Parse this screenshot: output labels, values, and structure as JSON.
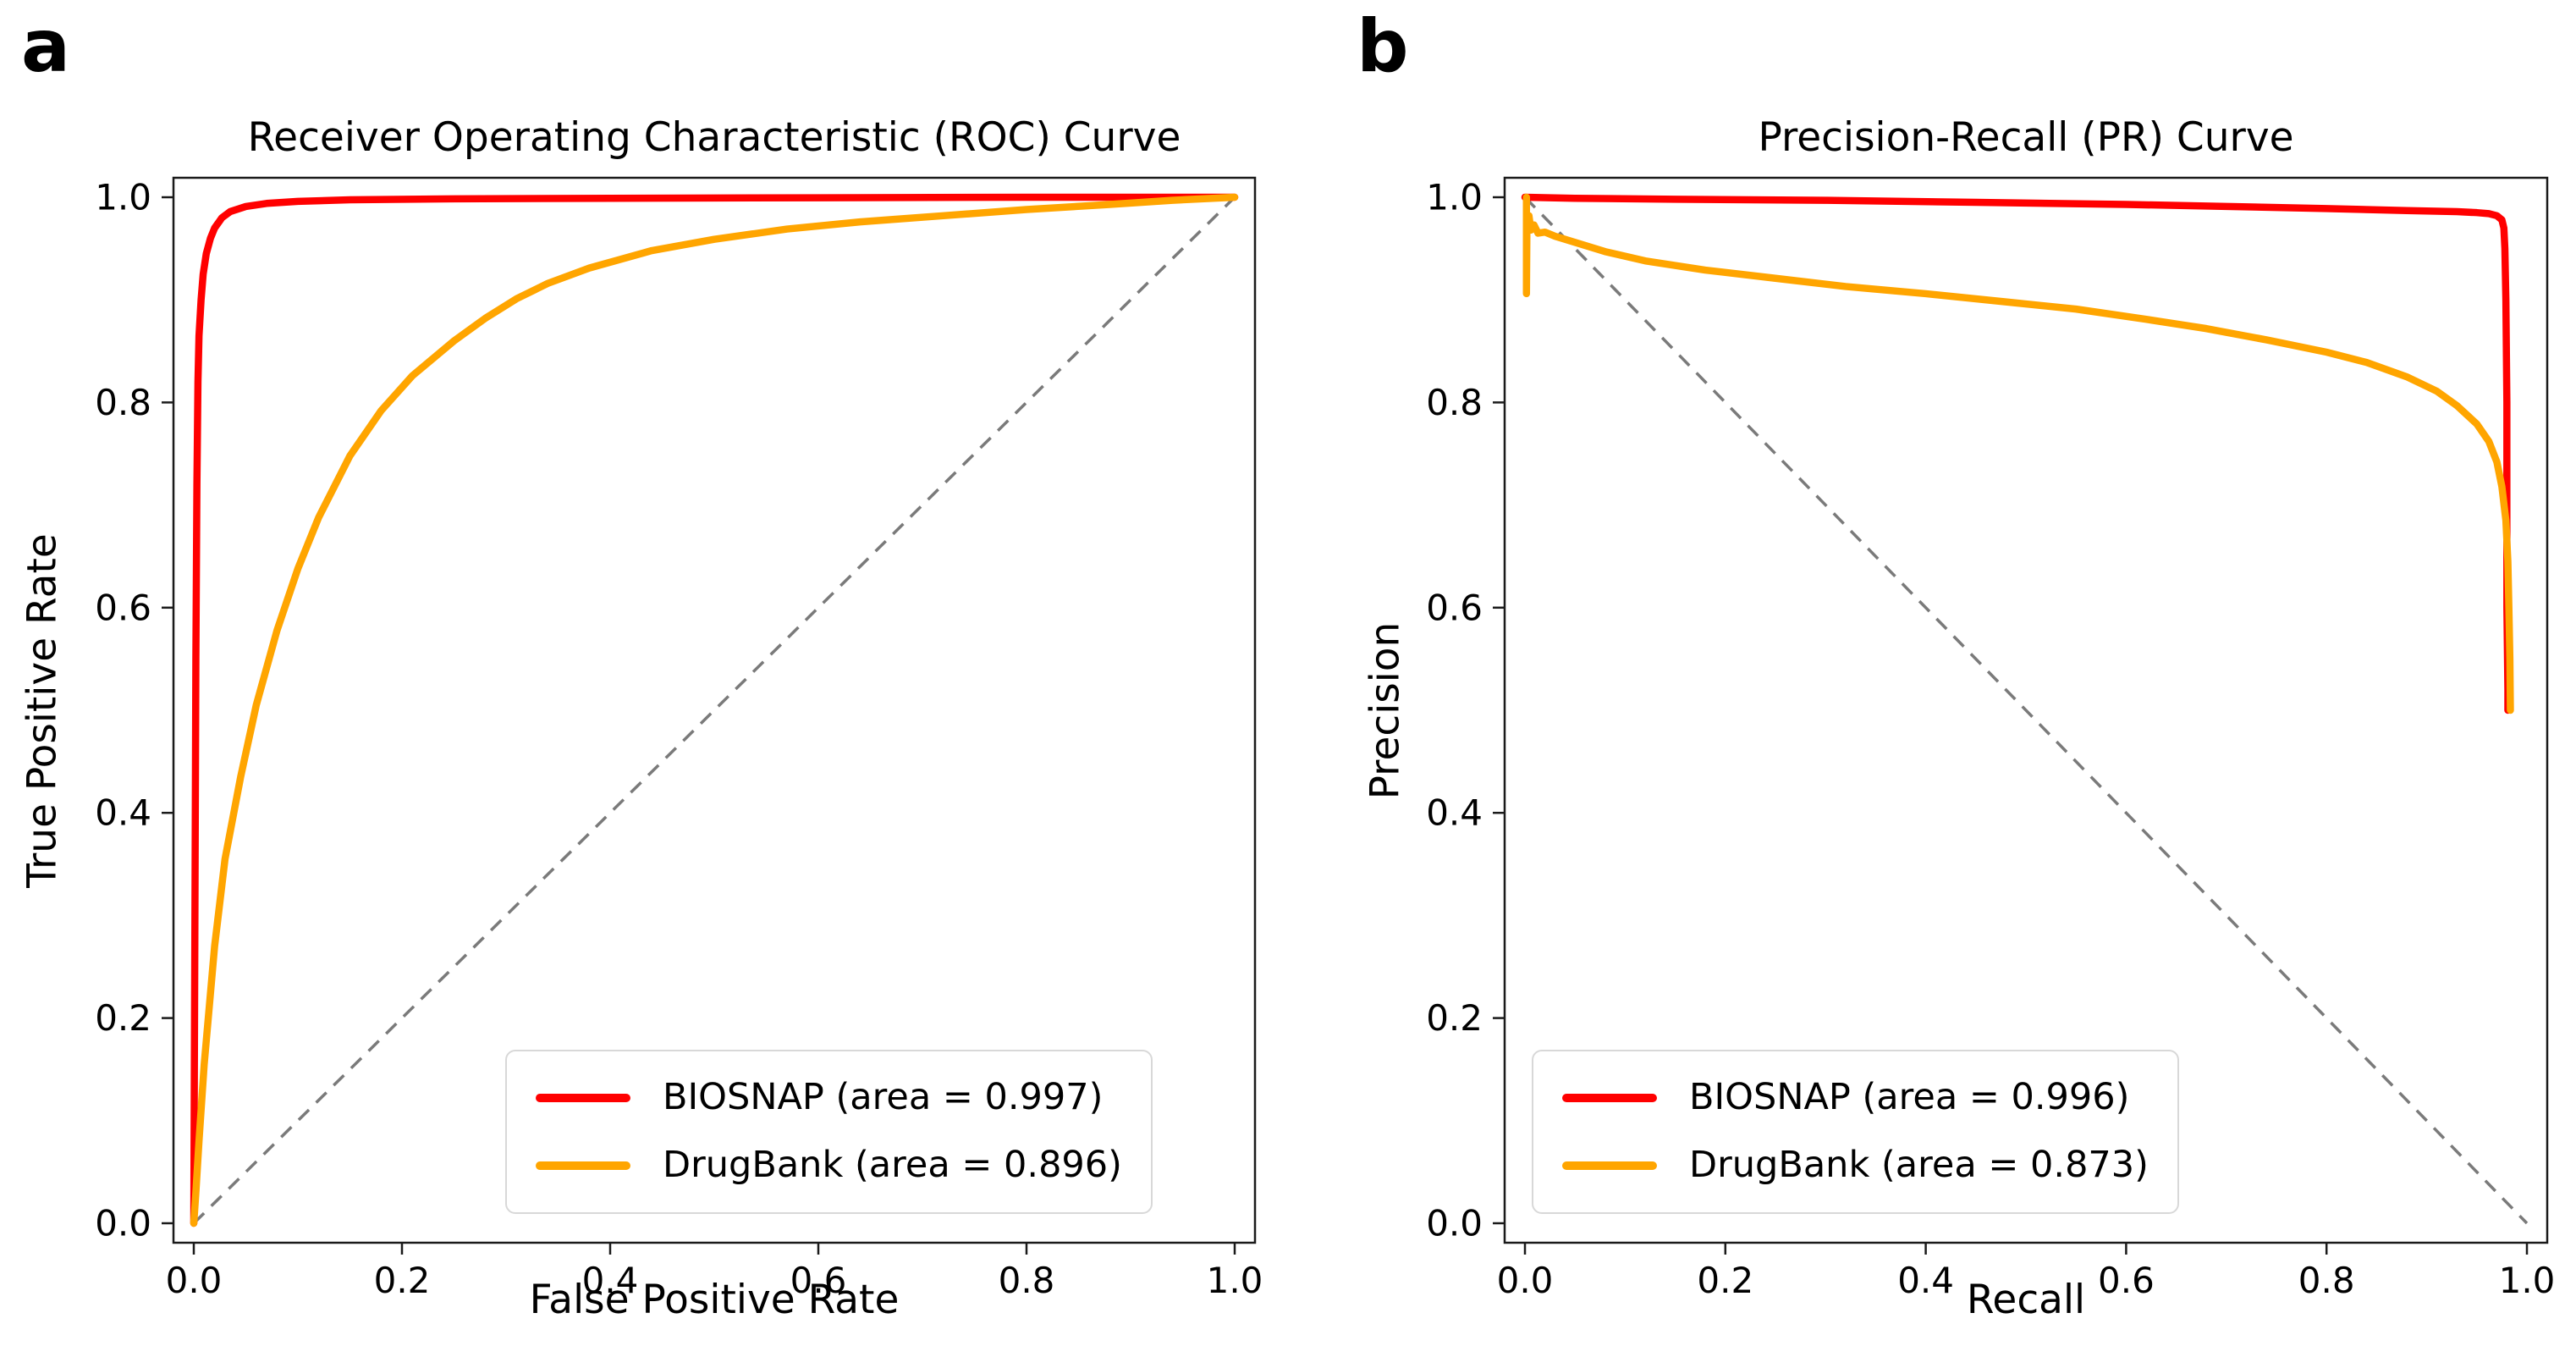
{
  "figure": {
    "background": "#ffffff",
    "panels": [
      "a",
      "b"
    ]
  },
  "colors": {
    "biosnap": "#ff0000",
    "drugbank": "#ffa500",
    "diagonal": "#7a7a7a",
    "spine": "#1a1a1a",
    "legend_border": "#d8d8d8"
  },
  "chart_data": [
    {
      "panel_letter": "a",
      "type": "line",
      "title": "Receiver Operating Characteristic (ROC) Curve",
      "xlabel": "False Positive Rate",
      "ylabel": "True Positive Rate",
      "xlim": [
        0.0,
        1.0
      ],
      "ylim": [
        0.0,
        1.0
      ],
      "xticks": [
        0.0,
        0.2,
        0.4,
        0.6,
        0.8,
        1.0
      ],
      "yticks": [
        0.0,
        0.2,
        0.4,
        0.6,
        0.8,
        1.0
      ],
      "grid": false,
      "legend_position": "lower right",
      "reference_line": {
        "name": "chance-diagonal",
        "from": [
          0,
          0
        ],
        "to": [
          1,
          1
        ],
        "color": "#7a7a7a",
        "style": "dashed"
      },
      "series": [
        {
          "name": "BIOSNAP",
          "legend_label": "BIOSNAP (area = 0.997)",
          "area": 0.997,
          "color": "#ff0000",
          "points": [
            [
              0,
              0
            ],
            [
              0.002,
              0.55
            ],
            [
              0.003,
              0.72
            ],
            [
              0.004,
              0.82
            ],
            [
              0.005,
              0.865
            ],
            [
              0.007,
              0.9
            ],
            [
              0.009,
              0.925
            ],
            [
              0.012,
              0.945
            ],
            [
              0.016,
              0.96
            ],
            [
              0.02,
              0.97
            ],
            [
              0.027,
              0.98
            ],
            [
              0.035,
              0.986
            ],
            [
              0.05,
              0.991
            ],
            [
              0.07,
              0.994
            ],
            [
              0.1,
              0.996
            ],
            [
              0.15,
              0.9975
            ],
            [
              0.25,
              0.9985
            ],
            [
              0.4,
              0.999
            ],
            [
              0.6,
              0.9995
            ],
            [
              0.8,
              1.0
            ],
            [
              1,
              1
            ]
          ]
        },
        {
          "name": "DrugBank",
          "legend_label": "DrugBank (area = 0.896)",
          "area": 0.896,
          "color": "#ffa500",
          "points": [
            [
              0,
              0
            ],
            [
              0.002,
              0.03
            ],
            [
              0.005,
              0.08
            ],
            [
              0.01,
              0.155
            ],
            [
              0.02,
              0.27
            ],
            [
              0.03,
              0.355
            ],
            [
              0.045,
              0.435
            ],
            [
              0.06,
              0.505
            ],
            [
              0.08,
              0.578
            ],
            [
              0.1,
              0.638
            ],
            [
              0.12,
              0.688
            ],
            [
              0.15,
              0.748
            ],
            [
              0.18,
              0.792
            ],
            [
              0.21,
              0.826
            ],
            [
              0.25,
              0.86
            ],
            [
              0.28,
              0.882
            ],
            [
              0.31,
              0.901
            ],
            [
              0.34,
              0.916
            ],
            [
              0.38,
              0.931
            ],
            [
              0.44,
              0.948
            ],
            [
              0.5,
              0.959
            ],
            [
              0.57,
              0.969
            ],
            [
              0.64,
              0.976
            ],
            [
              0.72,
              0.982
            ],
            [
              0.8,
              0.988
            ],
            [
              0.88,
              0.993
            ],
            [
              0.94,
              0.997
            ],
            [
              1,
              1
            ]
          ]
        }
      ]
    },
    {
      "panel_letter": "b",
      "type": "line",
      "title": "Precision-Recall (PR) Curve",
      "xlabel": "Recall",
      "ylabel": "Precision",
      "xlim": [
        0.0,
        1.0
      ],
      "ylim": [
        0.0,
        1.0
      ],
      "xticks": [
        0.0,
        0.2,
        0.4,
        0.6,
        0.8,
        1.0
      ],
      "yticks": [
        0.0,
        0.2,
        0.4,
        0.6,
        0.8,
        1.0
      ],
      "grid": false,
      "legend_position": "lower left",
      "reference_line": {
        "name": "baseline-diagonal",
        "from": [
          0,
          1
        ],
        "to": [
          1,
          0
        ],
        "color": "#7a7a7a",
        "style": "dashed"
      },
      "series": [
        {
          "name": "BIOSNAP",
          "legend_label": "BIOSNAP (area = 0.996)",
          "area": 0.996,
          "color": "#ff0000",
          "points": [
            [
              0,
              1.0
            ],
            [
              0.05,
              0.999
            ],
            [
              0.15,
              0.998
            ],
            [
              0.3,
              0.997
            ],
            [
              0.45,
              0.995
            ],
            [
              0.6,
              0.993
            ],
            [
              0.7,
              0.991
            ],
            [
              0.8,
              0.989
            ],
            [
              0.88,
              0.987
            ],
            [
              0.93,
              0.986
            ],
            [
              0.95,
              0.985
            ],
            [
              0.962,
              0.984
            ],
            [
              0.97,
              0.982
            ],
            [
              0.975,
              0.978
            ],
            [
              0.977,
              0.97
            ],
            [
              0.978,
              0.95
            ],
            [
              0.979,
              0.9
            ],
            [
              0.98,
              0.8
            ],
            [
              0.98,
              0.7
            ],
            [
              0.98,
              0.6
            ],
            [
              0.981,
              0.52
            ],
            [
              0.981,
              0.5
            ]
          ]
        },
        {
          "name": "DrugBank",
          "legend_label": "DrugBank (area = 0.873)",
          "area": 0.873,
          "color": "#ffa500",
          "points": [
            [
              0.0015,
              1.0
            ],
            [
              0.0015,
              0.906
            ],
            [
              0.002,
              0.975
            ],
            [
              0.004,
              0.982
            ],
            [
              0.006,
              0.968
            ],
            [
              0.009,
              0.973
            ],
            [
              0.013,
              0.965
            ],
            [
              0.02,
              0.966
            ],
            [
              0.03,
              0.962
            ],
            [
              0.05,
              0.956
            ],
            [
              0.08,
              0.947
            ],
            [
              0.12,
              0.938
            ],
            [
              0.18,
              0.929
            ],
            [
              0.25,
              0.921
            ],
            [
              0.32,
              0.913
            ],
            [
              0.4,
              0.906
            ],
            [
              0.48,
              0.898
            ],
            [
              0.55,
              0.891
            ],
            [
              0.62,
              0.881
            ],
            [
              0.68,
              0.872
            ],
            [
              0.74,
              0.861
            ],
            [
              0.8,
              0.849
            ],
            [
              0.84,
              0.839
            ],
            [
              0.88,
              0.825
            ],
            [
              0.91,
              0.811
            ],
            [
              0.93,
              0.797
            ],
            [
              0.95,
              0.779
            ],
            [
              0.962,
              0.762
            ],
            [
              0.97,
              0.742
            ],
            [
              0.975,
              0.718
            ],
            [
              0.979,
              0.685
            ],
            [
              0.981,
              0.645
            ],
            [
              0.982,
              0.6
            ],
            [
              0.983,
              0.55
            ],
            [
              0.9835,
              0.5
            ]
          ]
        }
      ]
    }
  ]
}
